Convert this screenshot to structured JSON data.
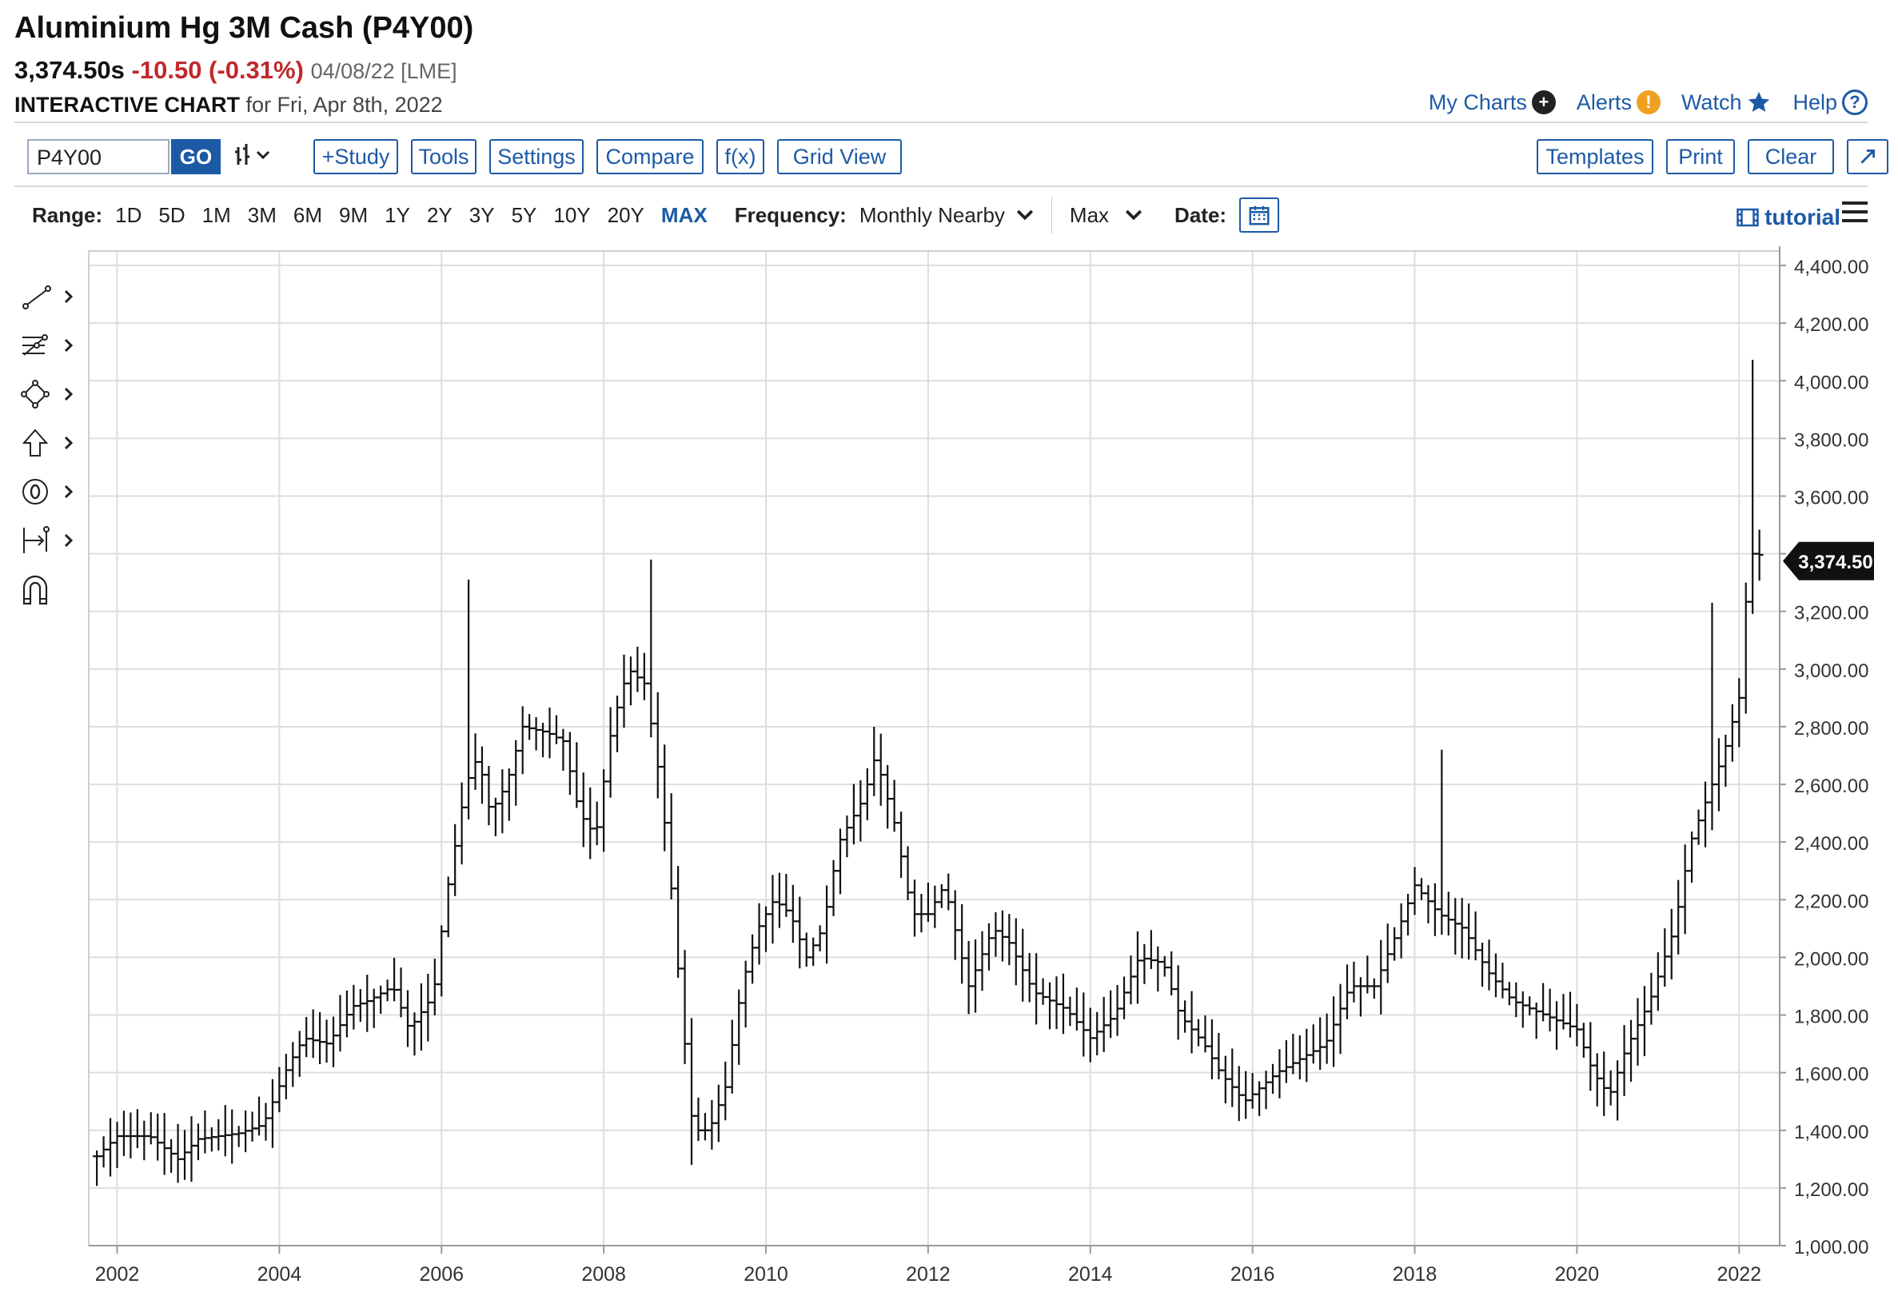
{
  "header": {
    "title": "Aluminium Hg 3M Cash (P4Y00)",
    "last_price": "3,374.50s",
    "change": "-10.50 (-0.31%)",
    "date_exchange": "04/08/22 [LME]",
    "chart_label": "INTERACTIVE CHART",
    "chart_for": "for Fri, Apr 8th, 2022"
  },
  "top_links": [
    {
      "label": "My Charts",
      "icon": "plus-circle-icon"
    },
    {
      "label": "Alerts",
      "icon": "exclamation-circle-icon"
    },
    {
      "label": "Watch",
      "icon": "star-icon"
    },
    {
      "label": "Help",
      "icon": "question-circle-icon"
    }
  ],
  "toolbar": {
    "symbol_value": "P4Y00",
    "go_label": "GO",
    "study_label": "+Study",
    "tools_label": "Tools",
    "settings_label": "Settings",
    "compare_label": "Compare",
    "fx_label": "f(x)",
    "grid_view_label": "Grid View",
    "templates_label": "Templates",
    "print_label": "Print",
    "clear_label": "Clear"
  },
  "range_bar": {
    "range_label": "Range:",
    "ranges": [
      "1D",
      "5D",
      "1M",
      "3M",
      "6M",
      "9M",
      "1Y",
      "2Y",
      "3Y",
      "5Y",
      "10Y",
      "20Y",
      "MAX"
    ],
    "active_range": "MAX",
    "frequency_label": "Frequency:",
    "frequency_value": "Monthly Nearby",
    "period_value": "Max",
    "date_label": "Date:",
    "tutorial_label": "tutorial"
  },
  "side_tools": [
    "trendline-icon",
    "fibonacci-icon",
    "shapes-icon",
    "arrow-up-icon",
    "zero-circle-icon",
    "measure-icon",
    "magnet-icon"
  ],
  "chart_data": {
    "type": "ohlc",
    "frequency": "monthly",
    "y_ticks": [
      "4,400.00",
      "4,200.00",
      "4,000.00",
      "3,800.00",
      "3,600.00",
      "3,400.00",
      "3,200.00",
      "3,000.00",
      "2,800.00",
      "2,600.00",
      "2,400.00",
      "2,200.00",
      "2,000.00",
      "1,800.00",
      "1,600.00",
      "1,400.00",
      "1,200.00",
      "1,000.00"
    ],
    "ylim": [
      1000,
      4450
    ],
    "x_ticks": [
      "2002",
      "2004",
      "2006",
      "2008",
      "2010",
      "2012",
      "2014",
      "2016",
      "2018",
      "2020",
      "2022"
    ],
    "x_range": [
      2001.65,
      2022.5
    ],
    "last_value_label": "3,374.50",
    "last_value": 3374.5,
    "grid": true,
    "path_waypoints": [
      [
        2001.75,
        1310
      ],
      [
        2002.0,
        1380
      ],
      [
        2002.4,
        1380
      ],
      [
        2002.75,
        1300
      ],
      [
        2003.0,
        1370
      ],
      [
        2003.5,
        1390
      ],
      [
        2003.8,
        1420
      ],
      [
        2004.1,
        1620
      ],
      [
        2004.3,
        1720
      ],
      [
        2004.6,
        1700
      ],
      [
        2004.9,
        1830
      ],
      [
        2005.1,
        1850
      ],
      [
        2005.4,
        1900
      ],
      [
        2005.6,
        1750
      ],
      [
        2005.9,
        1870
      ],
      [
        2006.05,
        2200
      ],
      [
        2006.3,
        2600
      ],
      [
        2006.45,
        2700
      ],
      [
        2006.6,
        2500
      ],
      [
        2006.8,
        2600
      ],
      [
        2007.0,
        2800
      ],
      [
        2007.3,
        2780
      ],
      [
        2007.5,
        2750
      ],
      [
        2007.7,
        2500
      ],
      [
        2007.9,
        2420
      ],
      [
        2008.1,
        2800
      ],
      [
        2008.3,
        3000
      ],
      [
        2008.5,
        2950
      ],
      [
        2008.65,
        2700
      ],
      [
        2008.8,
        2350
      ],
      [
        2008.95,
        1850
      ],
      [
        2009.1,
        1400
      ],
      [
        2009.3,
        1400
      ],
      [
        2009.5,
        1550
      ],
      [
        2009.7,
        1900
      ],
      [
        2009.9,
        2100
      ],
      [
        2010.1,
        2200
      ],
      [
        2010.3,
        2150
      ],
      [
        2010.5,
        2000
      ],
      [
        2010.7,
        2100
      ],
      [
        2010.9,
        2400
      ],
      [
        2011.2,
        2550
      ],
      [
        2011.35,
        2700
      ],
      [
        2011.6,
        2450
      ],
      [
        2011.8,
        2150
      ],
      [
        2012.0,
        2150
      ],
      [
        2012.2,
        2250
      ],
      [
        2012.5,
        1900
      ],
      [
        2012.8,
        2100
      ],
      [
        2013.0,
        2050
      ],
      [
        2013.3,
        1880
      ],
      [
        2013.7,
        1820
      ],
      [
        2014.0,
        1720
      ],
      [
        2014.3,
        1800
      ],
      [
        2014.6,
        2000
      ],
      [
        2014.9,
        1980
      ],
      [
        2015.1,
        1800
      ],
      [
        2015.4,
        1700
      ],
      [
        2015.6,
        1600
      ],
      [
        2015.9,
        1500
      ],
      [
        2016.3,
        1600
      ],
      [
        2016.6,
        1650
      ],
      [
        2016.9,
        1700
      ],
      [
        2017.2,
        1900
      ],
      [
        2017.5,
        1900
      ],
      [
        2017.8,
        2100
      ],
      [
        2018.0,
        2250
      ],
      [
        2018.3,
        2150
      ],
      [
        2018.6,
        2100
      ],
      [
        2018.9,
        1950
      ],
      [
        2019.2,
        1850
      ],
      [
        2019.6,
        1800
      ],
      [
        2020.0,
        1750
      ],
      [
        2020.2,
        1600
      ],
      [
        2020.4,
        1520
      ],
      [
        2020.6,
        1680
      ],
      [
        2020.9,
        1850
      ],
      [
        2021.2,
        2100
      ],
      [
        2021.4,
        2400
      ],
      [
        2021.6,
        2550
      ],
      [
        2021.8,
        2700
      ],
      [
        2022.0,
        2900
      ],
      [
        2022.1,
        3300
      ],
      [
        2022.2,
        3450
      ],
      [
        2022.27,
        3374.5
      ]
    ],
    "notable_highs": [
      {
        "x": 2006.35,
        "value": 3310
      },
      {
        "x": 2008.55,
        "value": 3380
      },
      {
        "x": 2011.3,
        "value": 2800
      },
      {
        "x": 2018.3,
        "value": 2720
      },
      {
        "x": 2021.7,
        "value": 3230
      },
      {
        "x": 2022.17,
        "value": 4073
      }
    ],
    "notable_lows": [
      {
        "x": 2001.9,
        "value": 1240
      },
      {
        "x": 2009.1,
        "value": 1280
      },
      {
        "x": 2015.9,
        "value": 1440
      },
      {
        "x": 2020.3,
        "value": 1450
      }
    ]
  }
}
